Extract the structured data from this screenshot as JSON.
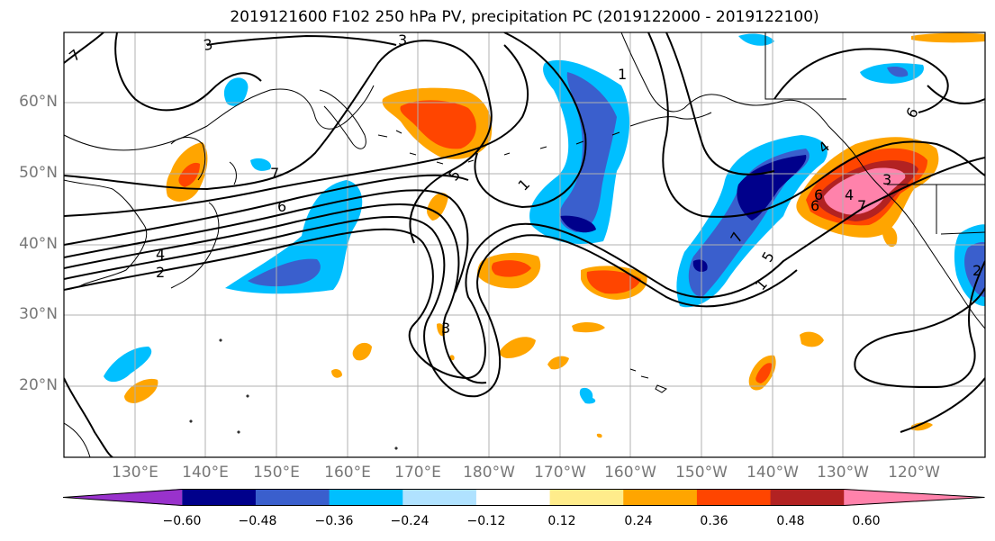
{
  "title": "2019121600 F102 250 hPa PV, precipitation PC (2019122000 - 2019122100)",
  "map": {
    "projection": "cylindrical",
    "lon_range_deg_east": [
      120,
      250
    ],
    "lat_range": [
      10,
      70
    ],
    "gridlines": true,
    "lat_labels": [
      "60°N",
      "50°N",
      "40°N",
      "30°N",
      "20°N"
    ],
    "lon_labels": [
      "130°E",
      "140°E",
      "150°E",
      "160°E",
      "170°E",
      "180°W",
      "170°W",
      "160°W",
      "150°W",
      "140°W",
      "130°W",
      "120°W"
    ],
    "contour_labels": [
      "3",
      "3",
      "7",
      "7",
      "6",
      "4",
      "2",
      "5",
      "1",
      "7",
      "6",
      "5",
      "4",
      "3",
      "6",
      "2",
      "1",
      "4",
      "6",
      "7",
      "3",
      "1"
    ],
    "contour_variable": "250 hPa PV",
    "shading_variable": "precipitation PC"
  },
  "colorbar": {
    "ticks": [
      "−0.60",
      "−0.48",
      "−0.36",
      "−0.24",
      "−0.12",
      "0.12",
      "0.24",
      "0.36",
      "0.48",
      "0.60"
    ],
    "tick_values": [
      -0.6,
      -0.48,
      -0.36,
      -0.24,
      -0.12,
      0.12,
      0.24,
      0.36,
      0.48,
      0.6
    ],
    "colors": [
      "#9932cc",
      "#00008b",
      "#3a5fcd",
      "#00bfff",
      "#b0e2ff",
      "#ffffff",
      "#ffec8b",
      "#ffa500",
      "#ff4500",
      "#b22222",
      "#ff82ab"
    ],
    "extend": "both"
  },
  "colors": {
    "gridline": "#b0b0b0",
    "coastline": "#000000",
    "contour": "#000000",
    "axis_label": "#777777"
  }
}
